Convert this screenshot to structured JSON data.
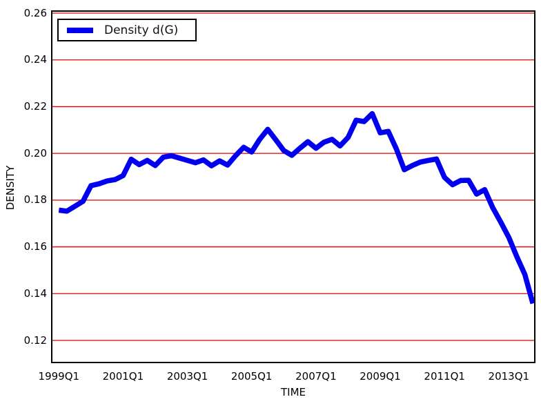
{
  "chart_data": {
    "type": "line",
    "title": "",
    "xlabel": "TIME",
    "ylabel": "DENSITY",
    "legend_position": "upper left",
    "grid": "horizontal gridlines on",
    "gridline_color": "#e00000",
    "frame_color": "#000000",
    "background_color": "#ffffff",
    "ylim": [
      0.11,
      0.26
    ],
    "xlim": [
      "1998Q4",
      "2014Q1"
    ],
    "yticks": [
      "0.12",
      "0.14",
      "0.16",
      "0.18",
      "0.20",
      "0.22",
      "0.24",
      "0.26"
    ],
    "xticks": [
      "1999Q1",
      "2001Q1",
      "2003Q1",
      "2005Q1",
      "2007Q1",
      "2009Q1",
      "2011Q1",
      "2013Q1"
    ],
    "x": [
      "1999Q1",
      "1999Q2",
      "1999Q3",
      "1999Q4",
      "2000Q1",
      "2000Q2",
      "2000Q3",
      "2000Q4",
      "2001Q1",
      "2001Q2",
      "2001Q3",
      "2001Q4",
      "2002Q1",
      "2002Q2",
      "2002Q3",
      "2002Q4",
      "2003Q1",
      "2003Q2",
      "2003Q3",
      "2003Q4",
      "2004Q1",
      "2004Q2",
      "2004Q3",
      "2004Q4",
      "2005Q1",
      "2005Q2",
      "2005Q3",
      "2005Q4",
      "2006Q1",
      "2006Q2",
      "2006Q3",
      "2006Q4",
      "2007Q1",
      "2007Q2",
      "2007Q3",
      "2007Q4",
      "2008Q1",
      "2008Q2",
      "2008Q3",
      "2008Q4",
      "2009Q1",
      "2009Q2",
      "2009Q3",
      "2009Q4",
      "2010Q1",
      "2010Q2",
      "2010Q3",
      "2010Q4",
      "2011Q1",
      "2011Q2",
      "2011Q3",
      "2011Q4",
      "2012Q1",
      "2012Q2",
      "2012Q3",
      "2012Q4",
      "2013Q1",
      "2013Q2",
      "2013Q3",
      "2013Q4"
    ],
    "series": [
      {
        "name": "Density d(G)",
        "color": "#0000ee",
        "line_width": 7.5,
        "values": [
          0.1757,
          0.1753,
          0.1774,
          0.1795,
          0.1862,
          0.187,
          0.1882,
          0.1888,
          0.1905,
          0.1975,
          0.1952,
          0.197,
          0.1948,
          0.1984,
          0.199,
          0.198,
          0.197,
          0.196,
          0.1972,
          0.1947,
          0.1968,
          0.195,
          0.199,
          0.2026,
          0.2006,
          0.206,
          0.2103,
          0.2058,
          0.2012,
          0.1992,
          0.2022,
          0.205,
          0.2022,
          0.2048,
          0.206,
          0.2032,
          0.2068,
          0.2142,
          0.2136,
          0.217,
          0.2088,
          0.2094,
          0.202,
          0.193,
          0.1948,
          0.1963,
          0.197,
          0.1976,
          0.1897,
          0.1866,
          0.1884,
          0.1885,
          0.1826,
          0.1845,
          0.1768,
          0.1706,
          0.1641,
          0.1558,
          0.1482,
          0.1358
        ]
      }
    ]
  }
}
